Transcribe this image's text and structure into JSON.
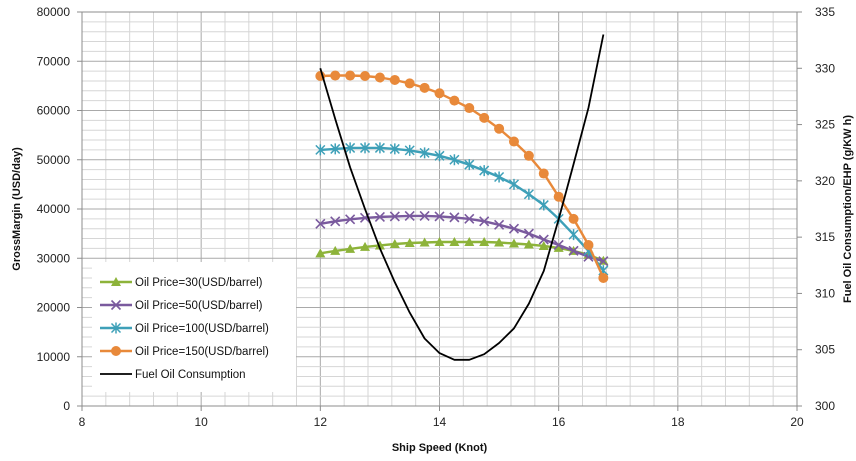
{
  "chart_data": {
    "type": "line",
    "title": "",
    "xlabel": "Ship Speed (Knot)",
    "ylabel": "GrossMargin (USD/day)",
    "y2label": "Fuel Oil Consumption/EHP (g/KW h)",
    "xlim": [
      8,
      20
    ],
    "ylim": [
      0,
      80000
    ],
    "y2lim": [
      300,
      335
    ],
    "xticks": [
      "8",
      "10",
      "12",
      "14",
      "16",
      "18",
      "20"
    ],
    "yticks": [
      "0",
      "10000",
      "20000",
      "30000",
      "40000",
      "50000",
      "60000",
      "70000",
      "80000"
    ],
    "y2ticks": [
      "300",
      "305",
      "310",
      "315",
      "320",
      "325",
      "330",
      "335"
    ],
    "grid": true,
    "legend_position": "bottom-left",
    "x": [
      12,
      12.25,
      12.5,
      12.75,
      13,
      13.25,
      13.5,
      13.75,
      14,
      14.25,
      14.5,
      14.75,
      15,
      15.25,
      15.5,
      15.75,
      16,
      16.25,
      16.5,
      16.75
    ],
    "series": [
      {
        "name": "Oil Price=30(USD/barrel)",
        "axis": "left",
        "color": "#8db33a",
        "marker": "triangle",
        "values": [
          31000,
          31500,
          31900,
          32300,
          32600,
          32900,
          33100,
          33200,
          33300,
          33300,
          33300,
          33300,
          33200,
          33000,
          32800,
          32500,
          32100,
          31500,
          30700,
          29500
        ]
      },
      {
        "name": "Oil Price=50(USD/barrel)",
        "axis": "left",
        "color": "#7a5a9e",
        "marker": "x",
        "values": [
          37000,
          37500,
          37900,
          38200,
          38400,
          38500,
          38600,
          38600,
          38500,
          38300,
          38000,
          37500,
          36800,
          36000,
          35000,
          33800,
          32700,
          31500,
          30300,
          29400
        ]
      },
      {
        "name": "Oil Price=100(USD/barrel)",
        "axis": "left",
        "color": "#3ea0b8",
        "marker": "star",
        "values": [
          52000,
          52200,
          52400,
          52400,
          52400,
          52200,
          51900,
          51400,
          50800,
          50000,
          49000,
          47800,
          46500,
          45000,
          43000,
          40800,
          38000,
          34800,
          31500,
          27500
        ]
      },
      {
        "name": "Oil Price=150(USD/barrel)",
        "axis": "left",
        "color": "#e8893a",
        "marker": "circle",
        "values": [
          67000,
          67100,
          67100,
          67000,
          66700,
          66200,
          65500,
          64600,
          63500,
          62000,
          60500,
          58500,
          56300,
          53700,
          50800,
          47200,
          42500,
          38000,
          32700,
          26000
        ]
      },
      {
        "name": "Fuel Oil Consumption",
        "axis": "right",
        "color": "#000000",
        "marker": "none",
        "x": [
          12,
          12.25,
          12.5,
          12.75,
          13,
          13.25,
          13.5,
          13.75,
          14,
          14.25,
          14.5,
          14.75,
          15,
          15.25,
          15.5,
          15.75,
          16,
          16.25,
          16.5,
          16.75
        ],
        "values": [
          330,
          325.5,
          321.2,
          317.5,
          314,
          311,
          308.3,
          306,
          304.7,
          304.1,
          304.1,
          304.6,
          305.6,
          306.9,
          309.1,
          312,
          316.6,
          321.5,
          326.5,
          333
        ]
      }
    ]
  }
}
